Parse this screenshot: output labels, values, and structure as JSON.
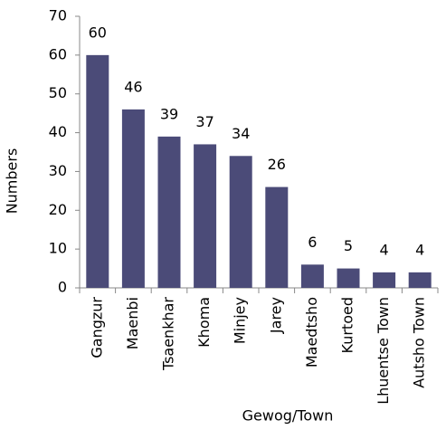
{
  "chart_data": {
    "type": "bar",
    "categories": [
      "Gangzur",
      "Maenbi",
      "Tsaenkhar",
      "Khoma",
      "Minjey",
      "Jarey",
      "Maedtsho",
      "Kurtoed",
      "Lhuentse Town",
      "Autsho Town"
    ],
    "values": [
      60,
      46,
      39,
      37,
      34,
      26,
      6,
      5,
      4,
      4
    ],
    "color": "#4b4b78",
    "ylim": [
      0,
      70
    ],
    "yticks": [
      0,
      10,
      20,
      30,
      40,
      50,
      60,
      70
    ],
    "y_label": "Numbers",
    "x_label": "Gewog/Town",
    "grid": false
  }
}
